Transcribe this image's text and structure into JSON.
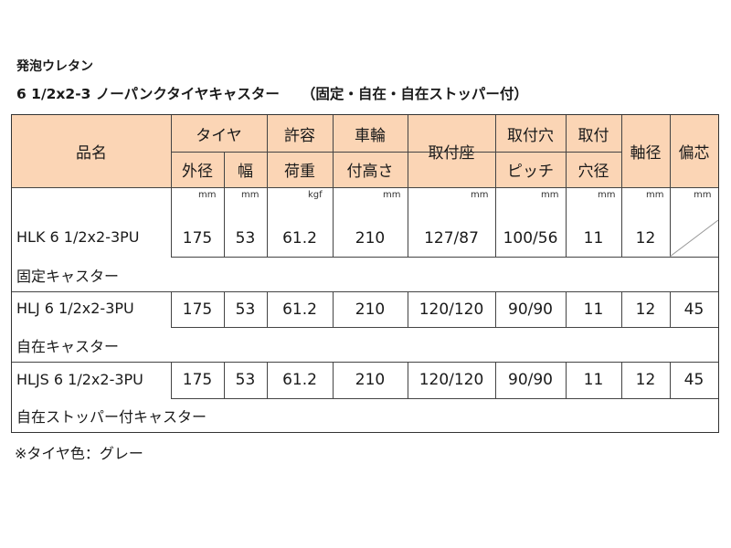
{
  "title": {
    "line1": "発泡ウレタン",
    "line2": "6 1/2x2-3 ノーパンクタイヤキャスター",
    "line2_sub": "（固定・自在・自在ストッパー付）"
  },
  "header": {
    "hinmei": "品名",
    "taiya": "タイヤ",
    "gaikei": "外径",
    "haba": "幅",
    "kyoyo": "許容",
    "kaju": "荷重",
    "sharin": "車輪",
    "tsukitakasa": "付高さ",
    "toritsukeza": "取付座",
    "toritsukeana": "取付穴",
    "pitch": "ピッチ",
    "toritsuke": "取付",
    "anakei": "穴径",
    "jikukei": "軸径",
    "henshin": "偏芯"
  },
  "units": {
    "gaikei": "mm",
    "haba": "mm",
    "kaju": "kgf",
    "takasa": "mm",
    "za": "mm",
    "pitch": "mm",
    "anakei": "mm",
    "jikukei": "mm",
    "henshin": "mm"
  },
  "rows": [
    {
      "name": "HLK 6 1/2x2-3PU",
      "gaikei": "175",
      "haba": "53",
      "kaju": "61.2",
      "takasa": "210",
      "za": "127/87",
      "pitch": "100/56",
      "anakei": "11",
      "jikukei": "12",
      "henshin": "",
      "desc": "固定キャスター"
    },
    {
      "name": "HLJ 6 1/2x2-3PU",
      "gaikei": "175",
      "haba": "53",
      "kaju": "61.2",
      "takasa": "210",
      "za": "120/120",
      "pitch": "90/90",
      "anakei": "11",
      "jikukei": "12",
      "henshin": "45",
      "desc": "自在キャスター"
    },
    {
      "name": "HLJS 6 1/2x2-3PU",
      "gaikei": "175",
      "haba": "53",
      "kaju": "61.2",
      "takasa": "210",
      "za": "120/120",
      "pitch": "90/90",
      "anakei": "11",
      "jikukei": "12",
      "henshin": "45",
      "desc": "自在ストッパー付キャスター"
    }
  ],
  "note": "※タイヤ色：グレー",
  "colors": {
    "header_bg": "#fbd5b5",
    "border": "#444444"
  }
}
